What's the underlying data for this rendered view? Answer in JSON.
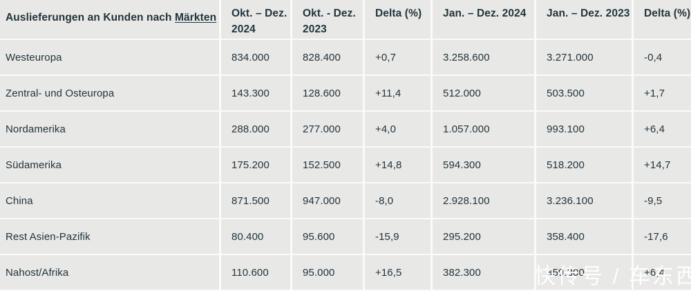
{
  "colors": {
    "cell_background": "#e8e8e6",
    "gutter": "#fbfbfa",
    "text": "#22343c",
    "watermark": "#ffffff"
  },
  "watermark_text": "快传号 / 车东西",
  "table": {
    "header": {
      "market_prefix": "Auslieferungen an Kunden nach ",
      "market_link": "Märkten",
      "columns": [
        "Okt. – Dez. 2024",
        "Okt. - Dez. 2023",
        "Delta (%)",
        "Jan. – Dez. 2024",
        "Jan. – Dez. 2023",
        "Delta (%)"
      ]
    },
    "rows": [
      {
        "market": "Westeuropa",
        "values": [
          "834.000",
          "828.400",
          "+0,7",
          "3.258.600",
          "3.271.000",
          "-0,4"
        ]
      },
      {
        "market": "Zentral- und Osteuropa",
        "values": [
          "143.300",
          "128.600",
          "+11,4",
          "512.000",
          "503.500",
          "+1,7"
        ]
      },
      {
        "market": "Nordamerika",
        "values": [
          "288.000",
          "277.000",
          "+4,0",
          "1.057.000",
          "993.100",
          "+6,4"
        ]
      },
      {
        "market": "Südamerika",
        "values": [
          "175.200",
          "152.500",
          "+14,8",
          "594.300",
          "518.200",
          "+14,7"
        ]
      },
      {
        "market": "China",
        "values": [
          "871.500",
          "947.000",
          "-8,0",
          "2.928.100",
          "3.236.100",
          "-9,5"
        ]
      },
      {
        "market": "Rest Asien-Pazifik",
        "values": [
          "80.400",
          "95.600",
          "-15,9",
          "295.200",
          "358.400",
          "-17,6"
        ]
      },
      {
        "market": "Nahost/Afrika",
        "values": [
          "110.600",
          "95.000",
          "+16,5",
          "382.300",
          "359.300",
          "+6,4"
        ]
      }
    ]
  }
}
